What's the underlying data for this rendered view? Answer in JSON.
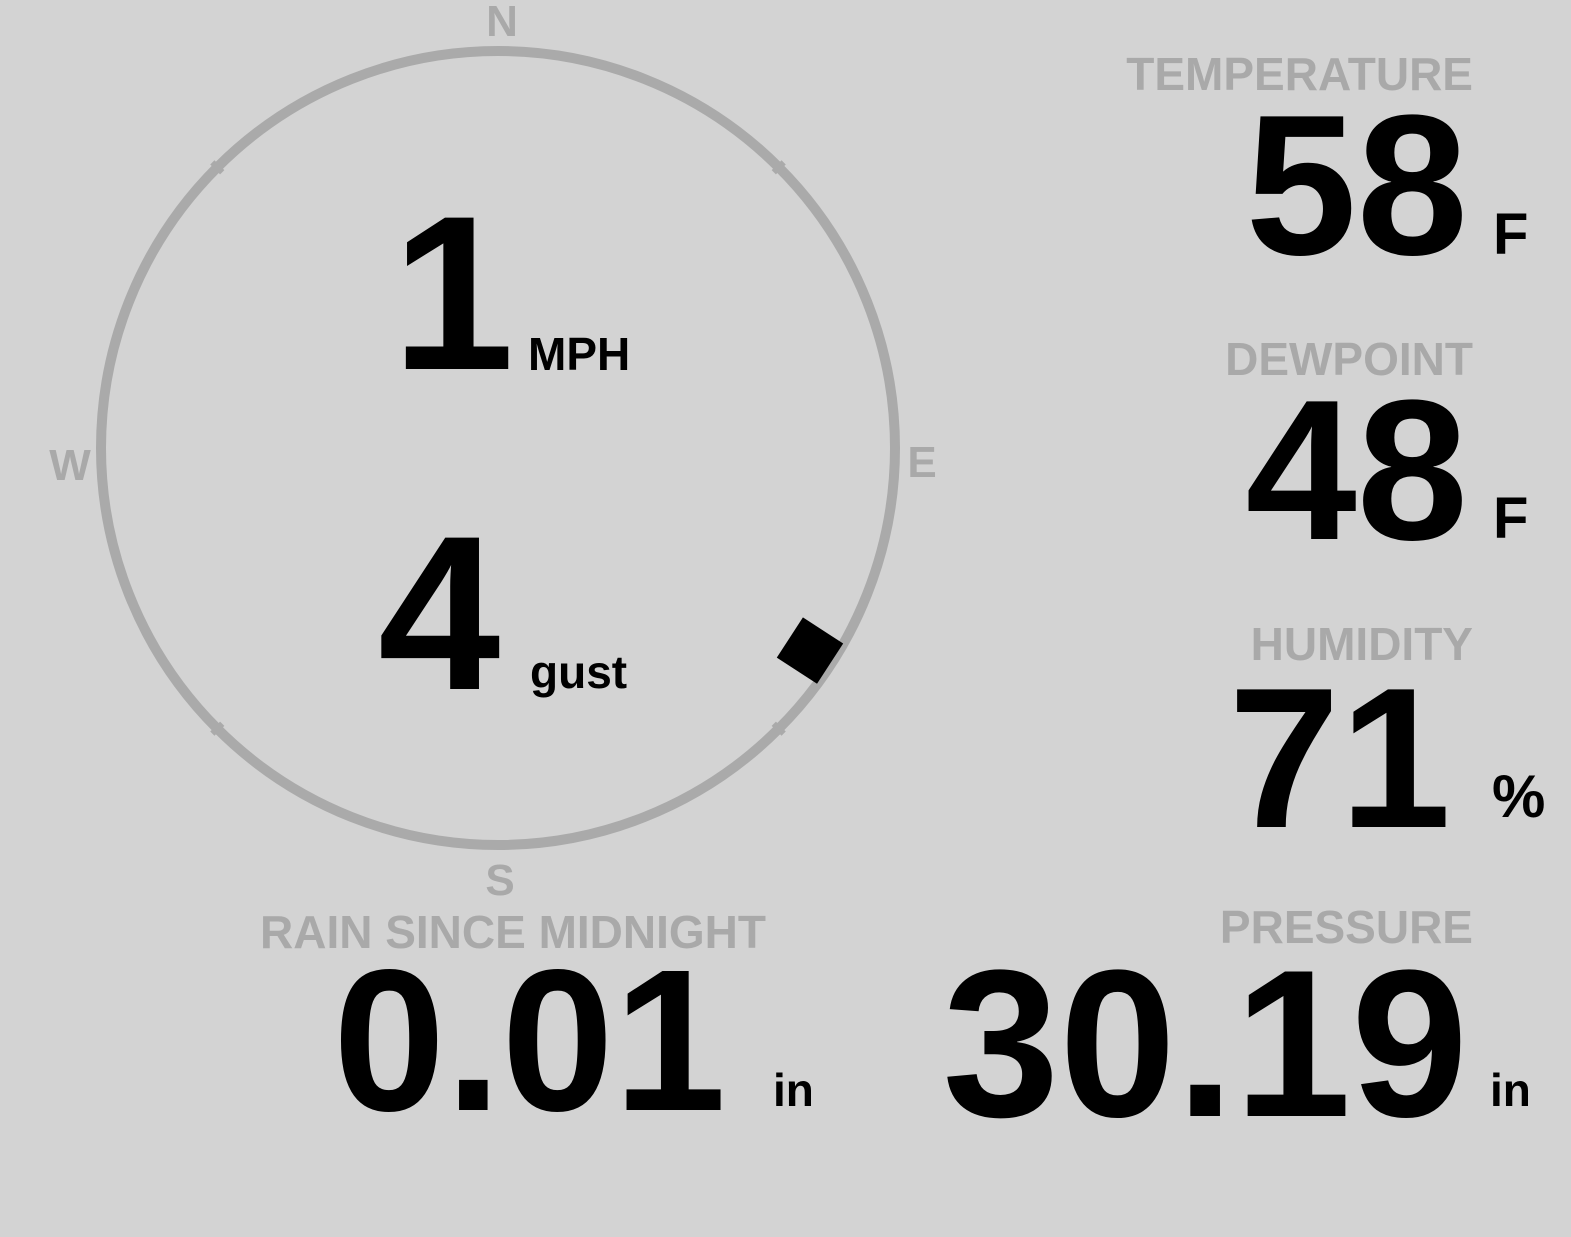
{
  "colors": {
    "background": "#d3d3d3",
    "label": "#a9a9a9",
    "value": "#000000",
    "compass_ring": "#aaaaaa"
  },
  "wind": {
    "compass": {
      "n": "N",
      "e": "E",
      "s": "S",
      "w": "W"
    },
    "direction_deg": 123,
    "speed": "1",
    "speed_unit": "MPH",
    "gust": "4",
    "gust_unit": "gust"
  },
  "temperature": {
    "label": "TEMPERATURE",
    "value": "58",
    "unit": "F"
  },
  "dewpoint": {
    "label": "DEWPOINT",
    "value": "48",
    "unit": "F"
  },
  "humidity": {
    "label": "HUMIDITY",
    "value": "71",
    "unit": "%"
  },
  "rain": {
    "label": "RAIN SINCE MIDNIGHT",
    "value": "0.01",
    "unit": "in"
  },
  "pressure": {
    "label": "PRESSURE",
    "value": "30.19",
    "unit": "in"
  }
}
